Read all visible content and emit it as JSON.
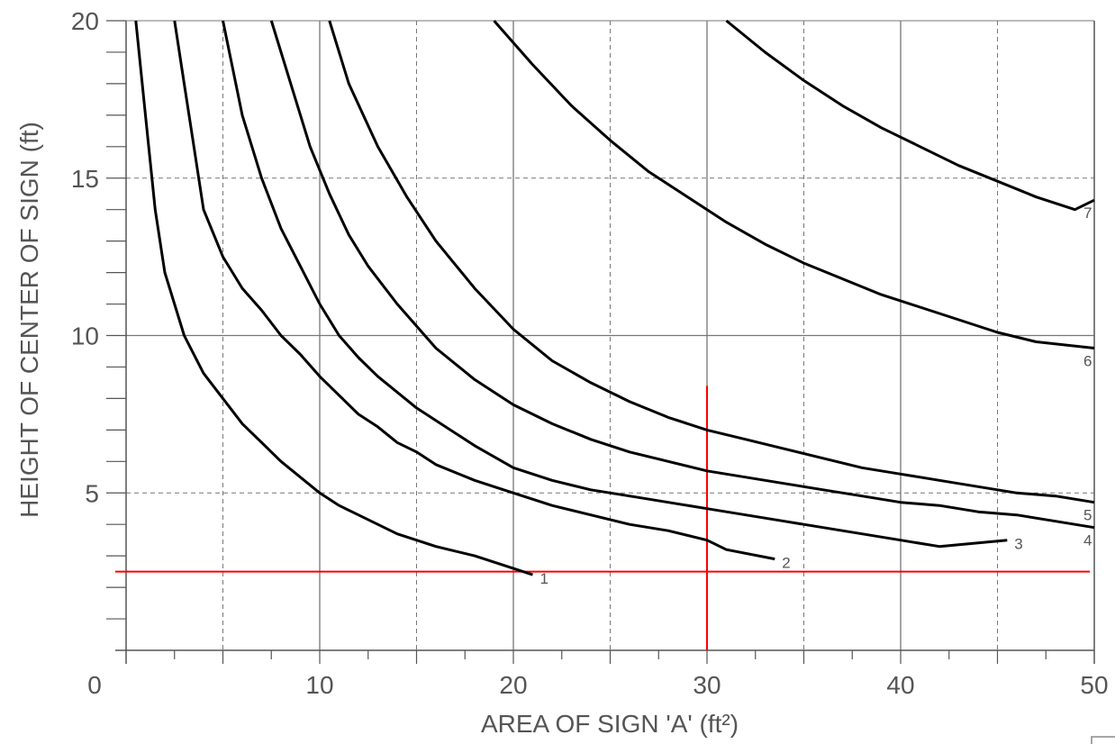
{
  "chart_data": {
    "type": "line",
    "xlabel": "AREA OF SIGN 'A' (ft²)",
    "ylabel": "HEIGHT OF CENTER OF SIGN (ft)",
    "xlim": [
      0,
      50
    ],
    "ylim": [
      0,
      20
    ],
    "x_ticks": [
      "0",
      "10",
      "20",
      "30",
      "40",
      "50"
    ],
    "y_ticks": [
      "5",
      "10",
      "15",
      "20"
    ],
    "grid": "solid major lines every 10 ft² / 5 ft, dashed minor lines every 5 ft²",
    "series": [
      {
        "name": "1",
        "points": [
          [
            0.5,
            20
          ],
          [
            1,
            17
          ],
          [
            1.5,
            14
          ],
          [
            2,
            12
          ],
          [
            3,
            10
          ],
          [
            4,
            8.8
          ],
          [
            5,
            8
          ],
          [
            6,
            7.2
          ],
          [
            7,
            6.6
          ],
          [
            8,
            6
          ],
          [
            9,
            5.5
          ],
          [
            10,
            5
          ],
          [
            11,
            4.6
          ],
          [
            12,
            4.3
          ],
          [
            13,
            4
          ],
          [
            14,
            3.7
          ],
          [
            16,
            3.3
          ],
          [
            18,
            3
          ],
          [
            20,
            2.6
          ],
          [
            21,
            2.4
          ]
        ]
      },
      {
        "name": "2",
        "points": [
          [
            2.5,
            20
          ],
          [
            3,
            18
          ],
          [
            3.5,
            16
          ],
          [
            4,
            14
          ],
          [
            5,
            12.5
          ],
          [
            6,
            11.5
          ],
          [
            7,
            10.8
          ],
          [
            8,
            10
          ],
          [
            9,
            9.4
          ],
          [
            10,
            8.7
          ],
          [
            11,
            8.1
          ],
          [
            12,
            7.5
          ],
          [
            13,
            7.1
          ],
          [
            14,
            6.6
          ],
          [
            15,
            6.3
          ],
          [
            16,
            5.9
          ],
          [
            18,
            5.4
          ],
          [
            20,
            5
          ],
          [
            22,
            4.6
          ],
          [
            24,
            4.3
          ],
          [
            26,
            4
          ],
          [
            28,
            3.8
          ],
          [
            30,
            3.5
          ],
          [
            31,
            3.2
          ],
          [
            33.5,
            2.9
          ]
        ]
      },
      {
        "name": "3",
        "points": [
          [
            5,
            20
          ],
          [
            6,
            17
          ],
          [
            7,
            15
          ],
          [
            8,
            13.4
          ],
          [
            9,
            12.2
          ],
          [
            10,
            11
          ],
          [
            11,
            10
          ],
          [
            12,
            9.3
          ],
          [
            13,
            8.7
          ],
          [
            14,
            8.2
          ],
          [
            15,
            7.7
          ],
          [
            16,
            7.3
          ],
          [
            18,
            6.5
          ],
          [
            20,
            5.8
          ],
          [
            22,
            5.4
          ],
          [
            24,
            5.1
          ],
          [
            26,
            4.9
          ],
          [
            28,
            4.7
          ],
          [
            30,
            4.5
          ],
          [
            32,
            4.3
          ],
          [
            34,
            4.1
          ],
          [
            36,
            3.9
          ],
          [
            38,
            3.7
          ],
          [
            40,
            3.5
          ],
          [
            42,
            3.3
          ],
          [
            45.5,
            3.5
          ]
        ]
      },
      {
        "name": "4",
        "points": [
          [
            7.5,
            20
          ],
          [
            8.5,
            18
          ],
          [
            9.5,
            16
          ],
          [
            10.5,
            14.5
          ],
          [
            11.5,
            13.2
          ],
          [
            12.5,
            12.2
          ],
          [
            14,
            11
          ],
          [
            16,
            9.6
          ],
          [
            18,
            8.6
          ],
          [
            20,
            7.8
          ],
          [
            22,
            7.2
          ],
          [
            24,
            6.7
          ],
          [
            26,
            6.3
          ],
          [
            28,
            6
          ],
          [
            30,
            5.7
          ],
          [
            32,
            5.5
          ],
          [
            34,
            5.3
          ],
          [
            36,
            5.1
          ],
          [
            38,
            4.9
          ],
          [
            40,
            4.7
          ],
          [
            42,
            4.6
          ],
          [
            44,
            4.4
          ],
          [
            46,
            4.3
          ],
          [
            48,
            4.1
          ],
          [
            50,
            3.9
          ]
        ]
      },
      {
        "name": "5",
        "points": [
          [
            10.5,
            20
          ],
          [
            11.5,
            18
          ],
          [
            13,
            16
          ],
          [
            14.5,
            14.4
          ],
          [
            16,
            13
          ],
          [
            18,
            11.5
          ],
          [
            20,
            10.2
          ],
          [
            22,
            9.2
          ],
          [
            24,
            8.5
          ],
          [
            26,
            7.9
          ],
          [
            28,
            7.4
          ],
          [
            30,
            7
          ],
          [
            32,
            6.7
          ],
          [
            34,
            6.4
          ],
          [
            36,
            6.1
          ],
          [
            38,
            5.8
          ],
          [
            40,
            5.6
          ],
          [
            42,
            5.4
          ],
          [
            44,
            5.2
          ],
          [
            46,
            5
          ],
          [
            48,
            4.9
          ],
          [
            50,
            4.7
          ]
        ]
      },
      {
        "name": "6",
        "points": [
          [
            19,
            20
          ],
          [
            21,
            18.6
          ],
          [
            23,
            17.3
          ],
          [
            25,
            16.2
          ],
          [
            27,
            15.2
          ],
          [
            29,
            14.4
          ],
          [
            31,
            13.6
          ],
          [
            33,
            12.9
          ],
          [
            35,
            12.3
          ],
          [
            37,
            11.8
          ],
          [
            39,
            11.3
          ],
          [
            41,
            10.9
          ],
          [
            43,
            10.5
          ],
          [
            45,
            10.1
          ],
          [
            47,
            9.8
          ],
          [
            50,
            9.6
          ]
        ]
      },
      {
        "name": "7",
        "points": [
          [
            31,
            20
          ],
          [
            33,
            19
          ],
          [
            35,
            18.1
          ],
          [
            37,
            17.3
          ],
          [
            39,
            16.6
          ],
          [
            41,
            16
          ],
          [
            43,
            15.4
          ],
          [
            45,
            14.9
          ],
          [
            47,
            14.4
          ],
          [
            49,
            14
          ],
          [
            50,
            14.3
          ]
        ]
      }
    ],
    "reference_lines": [
      {
        "orientation": "horizontal",
        "value": 2.5,
        "color": "#ff0000"
      },
      {
        "orientation": "vertical",
        "value": 30,
        "from": 0,
        "to": 8.4,
        "color": "#ff0000"
      }
    ],
    "colors": {
      "curve": "#000000",
      "reference": "#ff0000",
      "grid": "#777777",
      "text": "#555555"
    }
  }
}
